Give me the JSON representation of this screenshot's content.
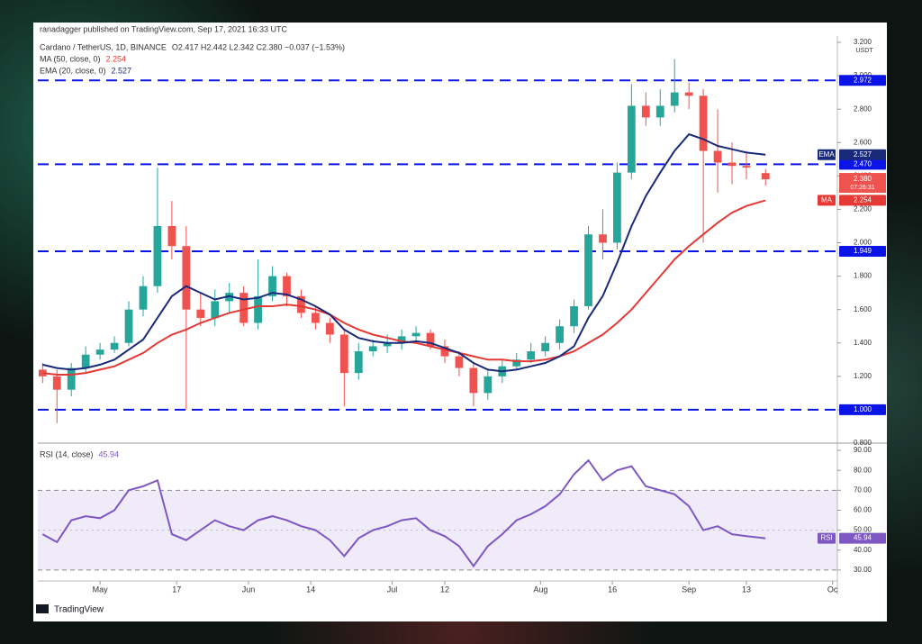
{
  "header": {
    "publisher": "ranadagger published on TradingView.com, Sep 17, 2021 16:33 UTC",
    "brand": "TradingView"
  },
  "chart_data": [
    {
      "type": "candlestick",
      "title": "Cardano / TetherUS, 1D, BINANCE",
      "ohlc_text": "O2.417 H2.442 L2.342 C2.380 −0.037 (−1.53%)",
      "currency": "USDT",
      "x": [
        1,
        4,
        7,
        10,
        13,
        16,
        19,
        22,
        25,
        28,
        31,
        34,
        37,
        40,
        43,
        46,
        49,
        52,
        55,
        58,
        61,
        64,
        67,
        70,
        73,
        76,
        79,
        82,
        85,
        88,
        91,
        94,
        97,
        100,
        103,
        106,
        109,
        112,
        115,
        118,
        121,
        124,
        127,
        130,
        133,
        136,
        139,
        142,
        145,
        148,
        152
      ],
      "open": [
        1.24,
        1.2,
        1.12,
        1.25,
        1.33,
        1.36,
        1.4,
        1.6,
        1.74,
        2.1,
        1.98,
        1.6,
        1.55,
        1.65,
        1.7,
        1.52,
        1.68,
        1.8,
        1.68,
        1.58,
        1.52,
        1.45,
        1.22,
        1.35,
        1.38,
        1.4,
        1.44,
        1.46,
        1.38,
        1.32,
        1.25,
        1.1,
        1.2,
        1.26,
        1.3,
        1.35,
        1.4,
        1.5,
        1.62,
        2.05,
        2.0,
        2.42,
        2.82,
        2.75,
        2.82,
        2.9,
        2.88,
        2.55,
        2.48,
        2.46,
        2.417
      ],
      "high": [
        1.28,
        1.24,
        1.28,
        1.38,
        1.4,
        1.44,
        1.65,
        1.8,
        2.45,
        2.25,
        2.1,
        1.7,
        1.72,
        1.76,
        1.74,
        1.9,
        1.86,
        1.82,
        1.72,
        1.62,
        1.55,
        1.48,
        1.4,
        1.42,
        1.45,
        1.48,
        1.5,
        1.48,
        1.42,
        1.35,
        1.28,
        1.24,
        1.3,
        1.34,
        1.4,
        1.44,
        1.54,
        1.66,
        2.1,
        2.2,
        2.48,
        2.95,
        2.9,
        2.92,
        3.1,
        2.96,
        2.92,
        2.8,
        2.6,
        2.55,
        2.442
      ],
      "low": [
        1.16,
        0.92,
        1.08,
        1.22,
        1.3,
        1.34,
        1.38,
        1.56,
        1.7,
        1.9,
        1.0,
        1.5,
        1.5,
        1.58,
        1.5,
        1.48,
        1.65,
        1.62,
        1.55,
        1.48,
        1.4,
        1.02,
        1.18,
        1.32,
        1.34,
        1.36,
        1.4,
        1.36,
        1.28,
        1.2,
        1.02,
        1.06,
        1.16,
        1.24,
        1.28,
        1.32,
        1.36,
        1.46,
        1.6,
        1.9,
        1.96,
        2.38,
        2.7,
        2.7,
        2.78,
        2.8,
        2.0,
        2.3,
        2.35,
        2.38,
        2.342
      ],
      "close": [
        1.2,
        1.12,
        1.25,
        1.33,
        1.36,
        1.4,
        1.6,
        1.74,
        2.1,
        1.98,
        1.6,
        1.55,
        1.65,
        1.7,
        1.52,
        1.68,
        1.8,
        1.68,
        1.58,
        1.52,
        1.45,
        1.22,
        1.35,
        1.38,
        1.4,
        1.44,
        1.46,
        1.38,
        1.32,
        1.25,
        1.1,
        1.2,
        1.26,
        1.3,
        1.35,
        1.4,
        1.5,
        1.62,
        2.05,
        2.0,
        2.42,
        2.82,
        2.75,
        2.82,
        2.9,
        2.88,
        2.55,
        2.48,
        2.46,
        2.45,
        2.38
      ],
      "up_color": "#26a69a",
      "down_color": "#ef5350",
      "series": [
        {
          "name": "MA (50, close, 0)",
          "badge": "MA",
          "color": "#e53935",
          "values": [
            1.22,
            1.21,
            1.21,
            1.22,
            1.24,
            1.26,
            1.3,
            1.34,
            1.4,
            1.45,
            1.48,
            1.52,
            1.55,
            1.58,
            1.6,
            1.62,
            1.62,
            1.63,
            1.62,
            1.6,
            1.57,
            1.52,
            1.48,
            1.45,
            1.43,
            1.41,
            1.4,
            1.38,
            1.36,
            1.34,
            1.32,
            1.3,
            1.3,
            1.29,
            1.29,
            1.3,
            1.32,
            1.35,
            1.4,
            1.45,
            1.52,
            1.6,
            1.7,
            1.8,
            1.9,
            1.98,
            2.05,
            2.12,
            2.18,
            2.22,
            2.254
          ]
        },
        {
          "name": "EMA (20, close, 0)",
          "badge": "EMA",
          "color": "#1a2a7a",
          "values": [
            1.27,
            1.25,
            1.24,
            1.25,
            1.27,
            1.3,
            1.36,
            1.42,
            1.55,
            1.68,
            1.74,
            1.7,
            1.66,
            1.68,
            1.66,
            1.67,
            1.7,
            1.69,
            1.66,
            1.62,
            1.57,
            1.48,
            1.43,
            1.41,
            1.4,
            1.4,
            1.41,
            1.4,
            1.37,
            1.34,
            1.28,
            1.24,
            1.23,
            1.24,
            1.26,
            1.28,
            1.32,
            1.38,
            1.55,
            1.68,
            1.88,
            2.1,
            2.28,
            2.42,
            2.55,
            2.65,
            2.62,
            2.58,
            2.56,
            2.54,
            2.527
          ]
        }
      ],
      "levels": [
        {
          "value": 2.972,
          "label": "2.972"
        },
        {
          "value": 2.47,
          "label": "2.470"
        },
        {
          "value": 1.949,
          "label": "1.949"
        },
        {
          "value": 1,
          "label": "1.000"
        }
      ],
      "level_color": "#0a14e6",
      "last_price": {
        "value": 2.38,
        "label": "2.380"
      },
      "countdown": "07:26:31",
      "ylim": [
        0.8,
        3.2
      ],
      "yticks": [
        {
          "value": 0.8,
          "label": "0.800"
        },
        {
          "value": 1,
          "label": "1.000"
        },
        {
          "value": 1.2,
          "label": "1.200"
        },
        {
          "value": 1.4,
          "label": "1.400"
        },
        {
          "value": 1.6,
          "label": "1.600"
        },
        {
          "value": 1.8,
          "label": "1.800"
        },
        {
          "value": 2,
          "label": "2.000"
        },
        {
          "value": 2.2,
          "label": "2.200"
        },
        {
          "value": 2.4,
          "label": "2.400"
        },
        {
          "value": 2.6,
          "label": "2.600"
        },
        {
          "value": 2.8,
          "label": "2.800"
        },
        {
          "value": 3,
          "label": "3.000"
        },
        {
          "value": 3.2,
          "label": "3.200"
        }
      ],
      "xlim": [
        0,
        167
      ],
      "xticks": [
        {
          "value": 13,
          "label": "May"
        },
        {
          "value": 29,
          "label": "17"
        },
        {
          "value": 44,
          "label": "Jun"
        },
        {
          "value": 57,
          "label": "14"
        },
        {
          "value": 74,
          "label": "Jul"
        },
        {
          "value": 85,
          "label": "12"
        },
        {
          "value": 105,
          "label": "Aug"
        },
        {
          "value": 120,
          "label": "16"
        },
        {
          "value": 136,
          "label": "Sep"
        },
        {
          "value": 148,
          "label": "13"
        },
        {
          "value": 166,
          "label": "Oc"
        }
      ]
    },
    {
      "type": "line",
      "series": [
        {
          "name": "RSI (14, close)",
          "badge": "RSI",
          "color": "#7e57c2",
          "values": [
            48,
            44,
            55,
            57,
            56,
            60,
            70,
            72,
            75,
            48,
            45,
            50,
            55,
            52,
            50,
            55,
            57,
            55,
            52,
            50,
            45,
            37,
            46,
            50,
            52,
            55,
            56,
            50,
            47,
            42,
            32,
            42,
            48,
            55,
            58,
            62,
            68,
            78,
            85,
            75,
            80,
            82,
            72,
            70,
            68,
            62,
            50,
            52,
            48,
            47,
            45.94
          ]
        }
      ],
      "band": [
        30,
        70
      ],
      "band_color": "#7e57c2",
      "ylim": [
        25,
        92
      ],
      "yticks": [
        {
          "value": 30,
          "label": "30.00"
        },
        {
          "value": 40,
          "label": "40.00"
        },
        {
          "value": 50,
          "label": "50.00"
        },
        {
          "value": 60,
          "label": "60.00"
        },
        {
          "value": 70,
          "label": "70.00"
        },
        {
          "value": 80,
          "label": "80.00"
        },
        {
          "value": 90,
          "label": "90.00"
        }
      ]
    }
  ]
}
